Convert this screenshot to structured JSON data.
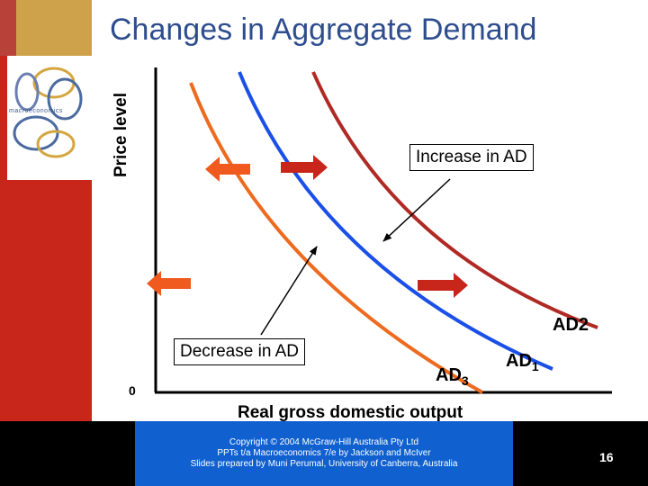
{
  "slide_title": "Changes in Aggregate Demand",
  "book_cover": {
    "title": "macroeconomics"
  },
  "chart_data": {
    "type": "line",
    "ylabel": "Price level",
    "xlabel": "Real gross domestic output",
    "origin_label": "0",
    "series": [
      {
        "name": "AD1",
        "color": "#1a4fe8"
      },
      {
        "name": "AD2",
        "color": "#b02a25"
      },
      {
        "name": "AD3",
        "color": "#ee6a1e"
      }
    ],
    "curve_labels": {
      "ad1": {
        "main": "AD",
        "sub": "1"
      },
      "ad2": {
        "main": "AD",
        "sub": "2"
      },
      "ad3": {
        "main": "AD",
        "sub": "3"
      }
    },
    "annotations": {
      "increase": "Increase in AD",
      "decrease": "Decrease in AD"
    },
    "colors": {
      "increase_arrow": "#c8261b",
      "decrease_arrow": "#f05a1e"
    }
  },
  "footer": {
    "line1": "Copyright © 2004 McGraw-Hill Australia Pty Ltd",
    "line2": "PPTs t/a Macroeconomics 7/e by Jackson and McIver",
    "line3": "Slides prepared by Muni Perumal, University of Canberra, Australia"
  },
  "page_number": "16"
}
